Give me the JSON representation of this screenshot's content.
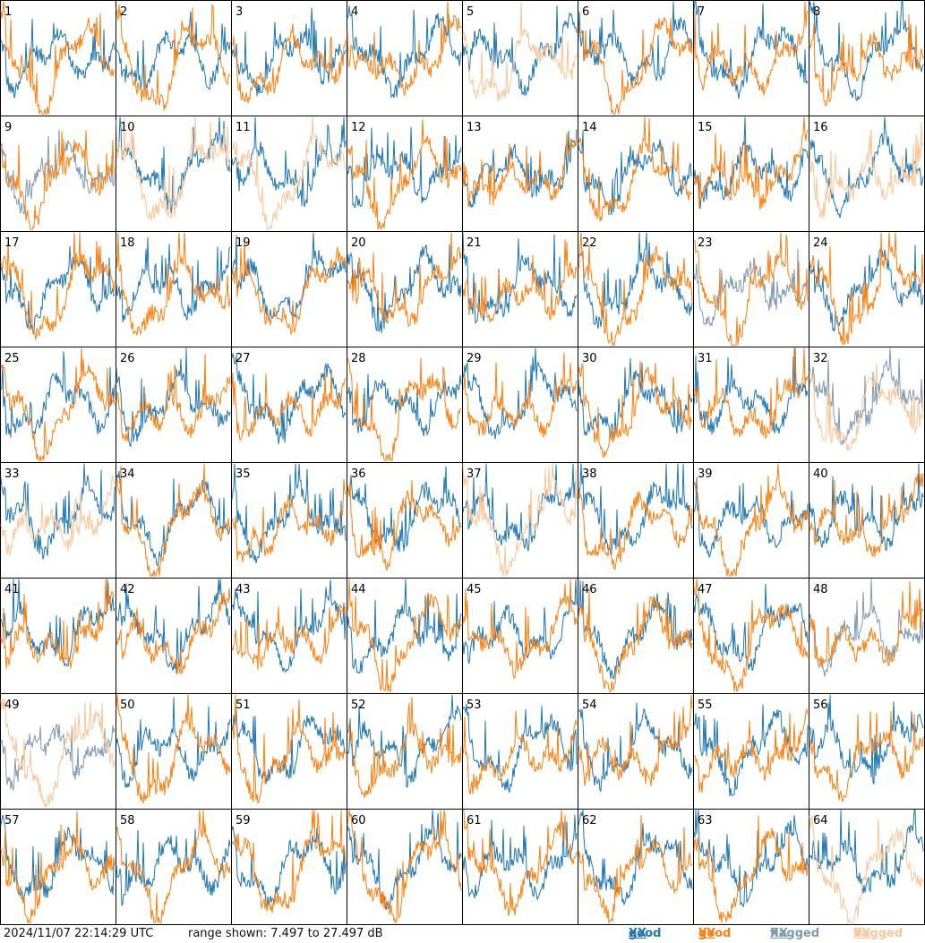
{
  "footer": {
    "timestamp": "2024/11/07 22:14:29 UTC",
    "range_text": "range shown: 7.497 to 27.497 dB"
  },
  "legend": {
    "good": "good",
    "flagged": "flagged",
    "xx": "XX",
    "yy": "YY"
  },
  "colors": {
    "good_xx": "#1f77b4",
    "good_yy": "#ff7f0e",
    "flagged_xx": "#7f9ab3",
    "flagged_yy": "#fcc697",
    "frame": "#000000"
  },
  "chart_data": {
    "type": "line",
    "ylim": [
      7.497,
      27.497
    ],
    "tiles": [
      {
        "id": "1",
        "xx": "good",
        "yy": "good"
      },
      {
        "id": "2",
        "xx": "good",
        "yy": "good"
      },
      {
        "id": "3",
        "xx": "good",
        "yy": "good"
      },
      {
        "id": "4",
        "xx": "good",
        "yy": "good"
      },
      {
        "id": "5",
        "xx": "good",
        "yy": "flagged"
      },
      {
        "id": "6",
        "xx": "good",
        "yy": "good"
      },
      {
        "id": "7",
        "xx": "good",
        "yy": "good"
      },
      {
        "id": "8",
        "xx": "good",
        "yy": "good"
      },
      {
        "id": "9",
        "xx": "flagged",
        "yy": "good"
      },
      {
        "id": "10",
        "xx": "good",
        "yy": "flagged"
      },
      {
        "id": "11",
        "xx": "good",
        "yy": "flagged"
      },
      {
        "id": "12",
        "xx": "good",
        "yy": "good"
      },
      {
        "id": "13",
        "xx": "good",
        "yy": "good"
      },
      {
        "id": "14",
        "xx": "good",
        "yy": "good"
      },
      {
        "id": "15",
        "xx": "good",
        "yy": "good"
      },
      {
        "id": "16",
        "xx": "good",
        "yy": "flagged"
      },
      {
        "id": "17",
        "xx": "good",
        "yy": "good"
      },
      {
        "id": "18",
        "xx": "good",
        "yy": "good"
      },
      {
        "id": "19",
        "xx": "good",
        "yy": "good"
      },
      {
        "id": "20",
        "xx": "good",
        "yy": "good"
      },
      {
        "id": "21",
        "xx": "good",
        "yy": "good"
      },
      {
        "id": "22",
        "xx": "good",
        "yy": "good"
      },
      {
        "id": "23",
        "xx": "flagged",
        "yy": "good"
      },
      {
        "id": "24",
        "xx": "good",
        "yy": "good"
      },
      {
        "id": "25",
        "xx": "good",
        "yy": "good"
      },
      {
        "id": "26",
        "xx": "good",
        "yy": "good"
      },
      {
        "id": "27",
        "xx": "good",
        "yy": "good"
      },
      {
        "id": "28",
        "xx": "good",
        "yy": "good"
      },
      {
        "id": "29",
        "xx": "good",
        "yy": "good"
      },
      {
        "id": "30",
        "xx": "good",
        "yy": "good"
      },
      {
        "id": "31",
        "xx": "good",
        "yy": "good"
      },
      {
        "id": "32",
        "xx": "flagged",
        "yy": "flagged"
      },
      {
        "id": "33",
        "xx": "good",
        "yy": "flagged"
      },
      {
        "id": "34",
        "xx": "good",
        "yy": "good"
      },
      {
        "id": "35",
        "xx": "good",
        "yy": "good"
      },
      {
        "id": "36",
        "xx": "good",
        "yy": "good"
      },
      {
        "id": "37",
        "xx": "good",
        "yy": "flagged"
      },
      {
        "id": "38",
        "xx": "good",
        "yy": "good"
      },
      {
        "id": "39",
        "xx": "good",
        "yy": "good"
      },
      {
        "id": "40",
        "xx": "good",
        "yy": "good"
      },
      {
        "id": "41",
        "xx": "good",
        "yy": "good"
      },
      {
        "id": "42",
        "xx": "good",
        "yy": "good"
      },
      {
        "id": "43",
        "xx": "good",
        "yy": "good"
      },
      {
        "id": "44",
        "xx": "good",
        "yy": "good"
      },
      {
        "id": "45",
        "xx": "good",
        "yy": "good"
      },
      {
        "id": "46",
        "xx": "good",
        "yy": "good"
      },
      {
        "id": "47",
        "xx": "good",
        "yy": "good"
      },
      {
        "id": "48",
        "xx": "flagged",
        "yy": "good"
      },
      {
        "id": "49",
        "xx": "flagged",
        "yy": "flagged"
      },
      {
        "id": "50",
        "xx": "good",
        "yy": "good"
      },
      {
        "id": "51",
        "xx": "good",
        "yy": "good"
      },
      {
        "id": "52",
        "xx": "good",
        "yy": "good"
      },
      {
        "id": "53",
        "xx": "good",
        "yy": "good"
      },
      {
        "id": "54",
        "xx": "good",
        "yy": "good"
      },
      {
        "id": "55",
        "xx": "good",
        "yy": "good"
      },
      {
        "id": "56",
        "xx": "good",
        "yy": "good"
      },
      {
        "id": "57",
        "xx": "good",
        "yy": "good"
      },
      {
        "id": "58",
        "xx": "good",
        "yy": "good"
      },
      {
        "id": "59",
        "xx": "good",
        "yy": "good"
      },
      {
        "id": "60",
        "xx": "good",
        "yy": "good"
      },
      {
        "id": "61",
        "xx": "good",
        "yy": "good"
      },
      {
        "id": "62",
        "xx": "good",
        "yy": "good"
      },
      {
        "id": "63",
        "xx": "good",
        "yy": "good"
      },
      {
        "id": "64",
        "xx": "good",
        "yy": "flagged"
      }
    ]
  }
}
